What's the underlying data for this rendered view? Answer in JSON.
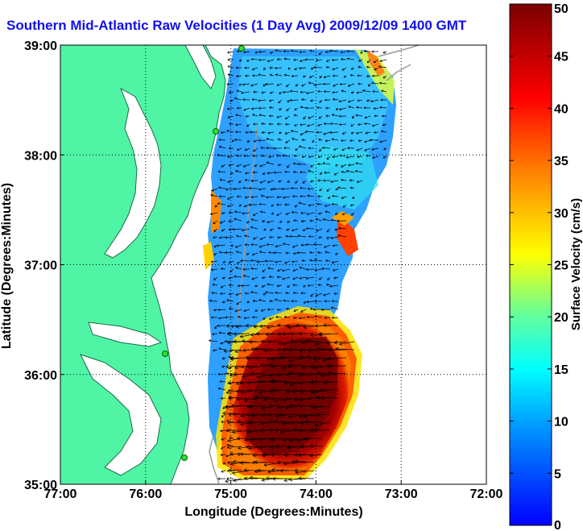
{
  "chart_data": {
    "type": "heatmap",
    "title": "Southern Mid-Atlantic Raw Velocities (1 Day Avg) 2009/12/09 1400 GMT",
    "xlabel": "Longitude (Degrees:Minutes)",
    "ylabel": "Latitude (Degrees:Minutes)",
    "xlim": [
      -77,
      -72
    ],
    "ylim": [
      35,
      39
    ],
    "x_ticks": [
      {
        "value": -77,
        "label": "77:00"
      },
      {
        "value": -76,
        "label": "76:00"
      },
      {
        "value": -75,
        "label": "75:00"
      },
      {
        "value": -74,
        "label": "74:00"
      },
      {
        "value": -73,
        "label": "73:00"
      },
      {
        "value": -72,
        "label": "72:00"
      }
    ],
    "y_ticks": [
      {
        "value": 35,
        "label": "35:00"
      },
      {
        "value": 36,
        "label": "36:00"
      },
      {
        "value": 37,
        "label": "37:00"
      },
      {
        "value": 38,
        "label": "38:00"
      },
      {
        "value": 39,
        "label": "39:00"
      }
    ],
    "grid": true,
    "colorbar": {
      "label": "Surface Velocity (cm/s)",
      "range": [
        0,
        50
      ],
      "ticks": [
        {
          "value": 0,
          "label": "0"
        },
        {
          "value": 5,
          "label": "5"
        },
        {
          "value": 10,
          "label": "10"
        },
        {
          "value": 15,
          "label": "15"
        },
        {
          "value": 20,
          "label": "20"
        },
        {
          "value": 25,
          "label": "25"
        },
        {
          "value": 30,
          "label": "30"
        },
        {
          "value": 35,
          "label": "35"
        },
        {
          "value": 40,
          "label": "40"
        },
        {
          "value": 45,
          "label": "45"
        },
        {
          "value": 50,
          "label": "50"
        }
      ],
      "colormap": [
        "#0000ff",
        "#00a0ff",
        "#00ffff",
        "#80ff80",
        "#ffff00",
        "#ff8000",
        "#ff0000",
        "#800000"
      ]
    },
    "colors": {
      "land": "#4ff5a5",
      "water_unmeasured": "#ffffff",
      "grid": "#000000",
      "title": "#1010ee"
    },
    "velocity_field_description_points": [
      {
        "lon": -74.3,
        "lat": 38.4,
        "speed": 8
      },
      {
        "lon": -74.5,
        "lat": 37.2,
        "speed": 6
      },
      {
        "lon": -74.0,
        "lat": 35.7,
        "speed": 50
      },
      {
        "lon": -73.7,
        "lat": 36.3,
        "speed": 48
      },
      {
        "lon": -75.1,
        "lat": 37.1,
        "speed": 30
      },
      {
        "lon": -73.6,
        "lat": 37.2,
        "speed": 35
      }
    ]
  }
}
